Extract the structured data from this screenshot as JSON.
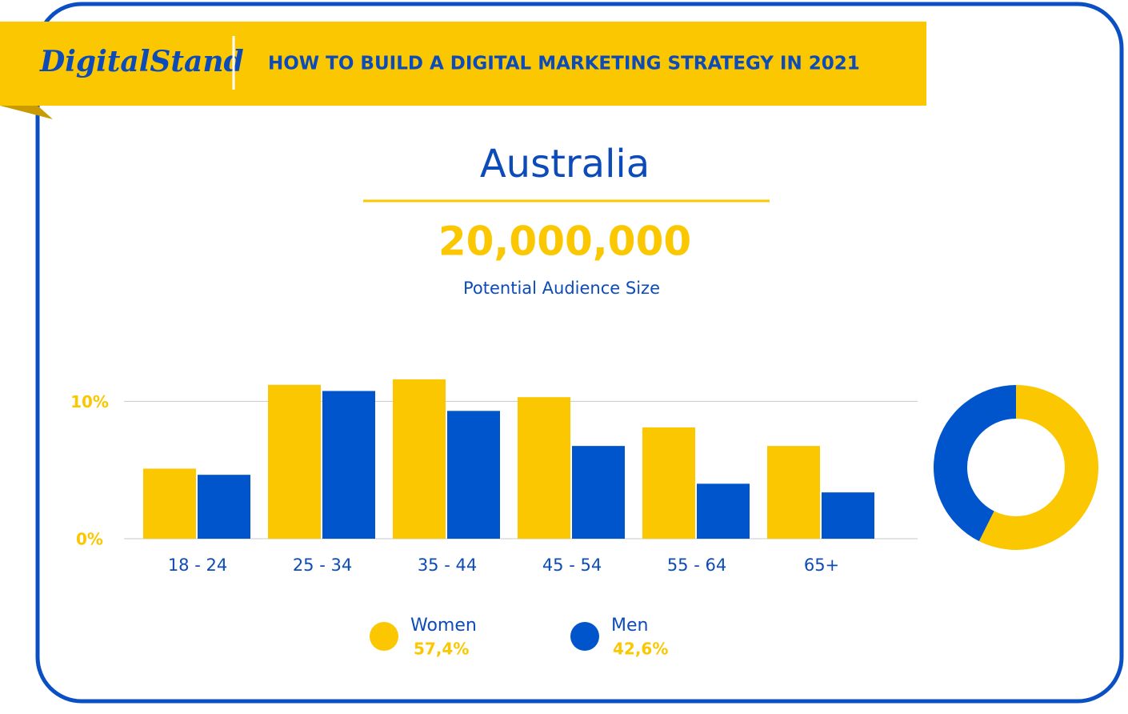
{
  "header": {
    "logo": "DigitalStand",
    "title": "HOW TO BUILD A DIGITAL MARKETING STRATEGY IN 2021"
  },
  "country": "Australia",
  "audience": {
    "size": "20,000,000",
    "caption": "Potential Audience Size"
  },
  "chart_data": [
    {
      "type": "bar",
      "categories": [
        "18 - 24",
        "25 - 34",
        "35 - 44",
        "45 - 54",
        "55 - 64",
        "65+"
      ],
      "series": [
        {
          "name": "Women",
          "color": "#fbc700",
          "values": [
            5.1,
            11.2,
            11.6,
            10.3,
            8.1,
            6.75
          ]
        },
        {
          "name": "Men",
          "color": "#0055cc",
          "values": [
            4.65,
            10.75,
            9.3,
            6.75,
            4.0,
            3.37
          ]
        }
      ],
      "ylim": [
        0,
        12
      ],
      "yticks": [
        {
          "value": 0,
          "label": "0%"
        },
        {
          "value": 10,
          "label": "10%"
        }
      ],
      "grid": true
    },
    {
      "type": "pie",
      "values": [
        57.4,
        42.6
      ],
      "value_labels": [
        "57,4%",
        "42,6%"
      ],
      "colors": [
        "#fbc700",
        "#0055cc"
      ],
      "donut": true
    }
  ]
}
